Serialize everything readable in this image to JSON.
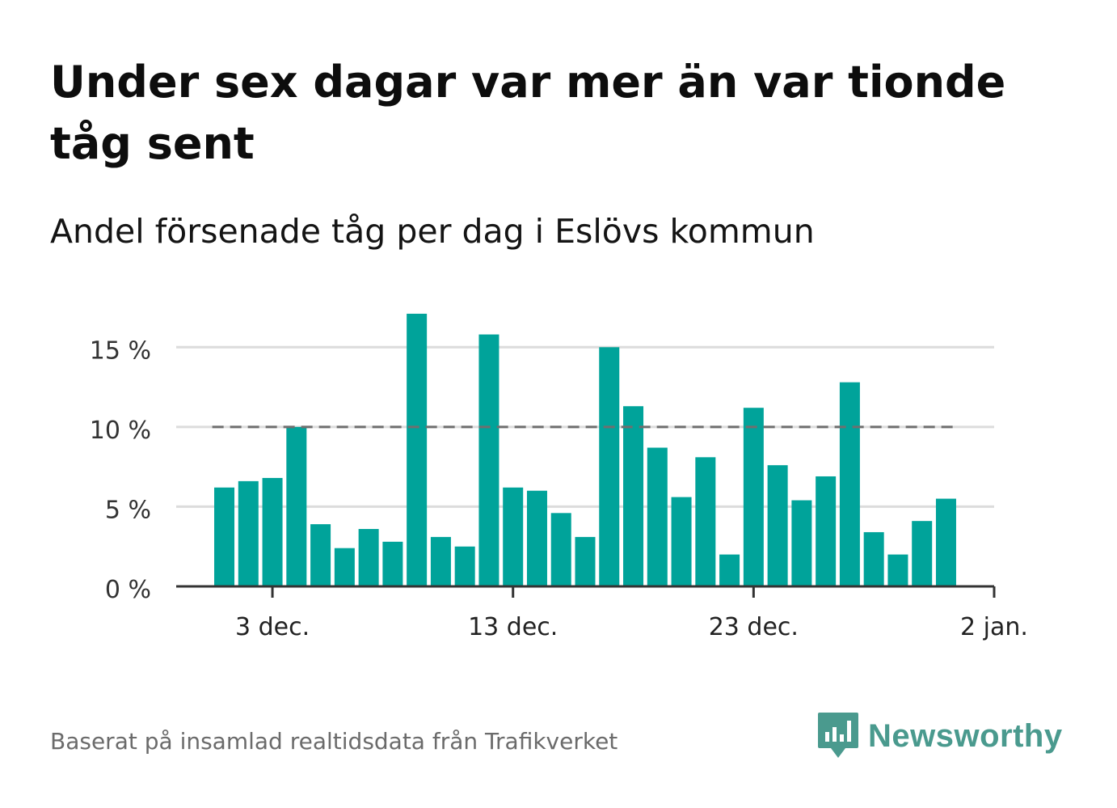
{
  "header": {
    "title": "Under sex dagar var mer än var tionde tåg sent",
    "subtitle": "Andel försenade tåg per dag i Eslövs kommun"
  },
  "footer": {
    "source": "Baserat på insamlad realtidsdata från Trafikverket",
    "brand": "Newsworthy",
    "logo_icon": "bar-chart-speech-bubble-icon"
  },
  "colors": {
    "bar": "#00a39a",
    "threshold": "#6f6f6f",
    "grid": "#dcdcdc",
    "axis": "#333333",
    "brand": "#4a9a8e"
  },
  "chart_data": {
    "type": "bar",
    "x": [
      "2023-12-01",
      "2023-12-02",
      "2023-12-03",
      "2023-12-04",
      "2023-12-05",
      "2023-12-06",
      "2023-12-07",
      "2023-12-08",
      "2023-12-09",
      "2023-12-10",
      "2023-12-11",
      "2023-12-12",
      "2023-12-13",
      "2023-12-14",
      "2023-12-15",
      "2023-12-16",
      "2023-12-17",
      "2023-12-18",
      "2023-12-19",
      "2023-12-20",
      "2023-12-21",
      "2023-12-22",
      "2023-12-23",
      "2023-12-24",
      "2023-12-25",
      "2023-12-26",
      "2023-12-27",
      "2023-12-28",
      "2023-12-29",
      "2023-12-30",
      "2023-12-31",
      "2024-01-01"
    ],
    "values": [
      6.2,
      6.6,
      6.8,
      10.0,
      3.9,
      2.4,
      3.6,
      2.8,
      17.1,
      3.1,
      2.5,
      15.8,
      6.2,
      6.0,
      4.6,
      3.1,
      15.0,
      11.3,
      8.7,
      5.6,
      8.1,
      2.0,
      11.2,
      7.6,
      5.4,
      6.9,
      12.8,
      3.4,
      2.0,
      4.1,
      5.5,
      null
    ],
    "reference_line": {
      "value": 10,
      "style": "dashed"
    },
    "yticks": [
      0,
      5,
      10,
      15
    ],
    "ytick_labels": [
      "0 %",
      "5 %",
      "10 %",
      "15 %"
    ],
    "xticks": [
      "2023-12-03",
      "2023-12-13",
      "2023-12-23",
      "2024-01-02"
    ],
    "xtick_labels": [
      "3 dec.",
      "13 dec.",
      "23 dec.",
      "2 jan."
    ],
    "ylim": [
      0,
      17.5
    ],
    "xlim": [
      "2023-11-29",
      "2024-01-02"
    ],
    "grid": true,
    "xlabel": "",
    "ylabel": ""
  }
}
